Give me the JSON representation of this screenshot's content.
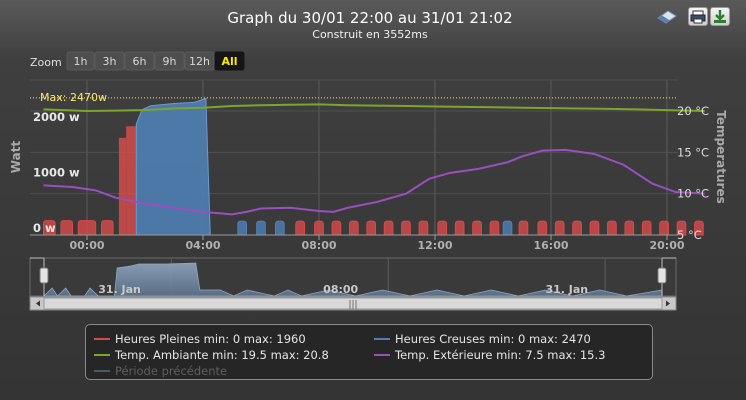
{
  "title": "Graph du 30/01 22:00 au 31/01 21:02",
  "subtitle": "Construit en 3552ms",
  "zoom": {
    "label": "Zoom",
    "buttons": [
      "1h",
      "3h",
      "6h",
      "9h",
      "12h",
      "All"
    ],
    "selected": "All"
  },
  "max_line_label": "Max: 2470w",
  "navigator": {
    "labels": [
      "31. Jan",
      "08:00",
      "31. Jan"
    ],
    "scrollbar_grip": "|||"
  },
  "legend": [
    {
      "text": "Heures Pleines min: 0 max: 1960",
      "color": "#d54b4b",
      "enabled": true
    },
    {
      "text": "Heures Creuses min: 0 max: 2470",
      "color": "#4f7fb5",
      "enabled": true
    },
    {
      "text": "Temp. Ambiante min: 19.5 max: 20.8",
      "color": "#7ca529",
      "enabled": true
    },
    {
      "text": "Temp. Extérieure min: 7.5 max: 15.3",
      "color": "#9b4fbf",
      "enabled": true
    },
    {
      "text": "Période précédente",
      "color": "#4a5a6a",
      "enabled": false
    }
  ],
  "chart_data": {
    "type": "area",
    "x_unit": "hours",
    "x_range": [
      "30/01 22:00",
      "31/01 21:02"
    ],
    "x_ticks": [
      "00:00",
      "04:00",
      "08:00",
      "12:00",
      "16:00",
      "20:00"
    ],
    "y_left": {
      "label": "Watt",
      "ticks": [
        "0 w",
        "1000 w",
        "2000 w"
      ],
      "range": [
        0,
        2470
      ]
    },
    "y_right": {
      "label": "Temperatures",
      "ticks": [
        "5 °C",
        "10 °C",
        "15 °C",
        "20 °C"
      ],
      "range": [
        5,
        20
      ]
    },
    "max_line": 2470,
    "series": [
      {
        "name": "Heures Pleines",
        "axis": "left",
        "color": "#d54b4b",
        "kind": "pulses",
        "segments": [
          [
            -1.5,
            -1.1,
            260
          ],
          [
            -0.9,
            -0.5,
            260
          ],
          [
            -0.3,
            0.3,
            260
          ],
          [
            0.5,
            0.9,
            260
          ],
          [
            1.1,
            1.35,
            1750
          ],
          [
            1.35,
            1.7,
            1960
          ],
          [
            7.2,
            7.5,
            250
          ],
          [
            7.85,
            8.15,
            250
          ],
          [
            8.45,
            8.75,
            250
          ],
          [
            9.05,
            9.35,
            250
          ],
          [
            9.65,
            9.95,
            250
          ],
          [
            10.25,
            10.55,
            250
          ],
          [
            10.85,
            11.15,
            250
          ],
          [
            11.45,
            11.75,
            250
          ],
          [
            12.1,
            12.4,
            250
          ],
          [
            12.7,
            13.0,
            250
          ],
          [
            13.3,
            13.6,
            250
          ],
          [
            13.9,
            14.2,
            250
          ],
          [
            14.9,
            15.2,
            250
          ],
          [
            15.55,
            15.85,
            250
          ],
          [
            16.15,
            16.45,
            250
          ],
          [
            16.75,
            17.05,
            250
          ],
          [
            17.35,
            17.65,
            250
          ],
          [
            17.95,
            18.25,
            250
          ],
          [
            18.55,
            18.85,
            250
          ],
          [
            19.15,
            19.45,
            250
          ],
          [
            19.75,
            20.05,
            250
          ],
          [
            20.35,
            20.65,
            250
          ],
          [
            20.95,
            21.25,
            250
          ]
        ]
      },
      {
        "name": "Heures Creuses",
        "axis": "left",
        "color": "#4f7fb5",
        "kind": "block",
        "points": [
          [
            1.7,
            0
          ],
          [
            1.7,
            2000
          ],
          [
            1.9,
            2260
          ],
          [
            2.2,
            2330
          ],
          [
            3.0,
            2370
          ],
          [
            3.7,
            2390
          ],
          [
            4.1,
            2460
          ],
          [
            4.25,
            0
          ]
        ],
        "pulses": [
          [
            5.2,
            5.5,
            250
          ],
          [
            5.85,
            6.15,
            250
          ],
          [
            6.5,
            6.8,
            250
          ],
          [
            14.35,
            14.65,
            250
          ]
        ]
      },
      {
        "name": "Temp. Ambiante",
        "axis": "right",
        "color": "#7ca529",
        "kind": "line",
        "points": [
          [
            -1.5,
            20.2
          ],
          [
            0,
            20.0
          ],
          [
            1,
            20.05
          ],
          [
            2,
            20.1
          ],
          [
            3,
            20.3
          ],
          [
            4,
            20.4
          ],
          [
            5,
            20.6
          ],
          [
            6,
            20.7
          ],
          [
            7,
            20.75
          ],
          [
            8,
            20.8
          ],
          [
            9,
            20.7
          ],
          [
            10,
            20.65
          ],
          [
            11,
            20.6
          ],
          [
            12,
            20.55
          ],
          [
            13,
            20.5
          ],
          [
            14,
            20.45
          ],
          [
            15,
            20.4
          ],
          [
            16,
            20.35
          ],
          [
            17,
            20.3
          ],
          [
            18,
            20.25
          ],
          [
            19,
            20.2
          ],
          [
            20,
            20.1
          ],
          [
            21.3,
            20.0
          ]
        ]
      },
      {
        "name": "Temp. Extérieure",
        "axis": "right",
        "color": "#9b4fbf",
        "kind": "line",
        "points": [
          [
            -1.5,
            11.0
          ],
          [
            -0.5,
            10.8
          ],
          [
            0.3,
            10.4
          ],
          [
            1,
            9.5
          ],
          [
            2,
            8.8
          ],
          [
            3,
            8.3
          ],
          [
            4,
            7.8
          ],
          [
            5,
            7.5
          ],
          [
            5.5,
            7.8
          ],
          [
            6,
            8.2
          ],
          [
            7,
            8.3
          ],
          [
            8,
            7.9
          ],
          [
            8.5,
            7.8
          ],
          [
            9,
            8.3
          ],
          [
            10,
            9.0
          ],
          [
            11,
            10.0
          ],
          [
            11.8,
            11.8
          ],
          [
            12.5,
            12.5
          ],
          [
            13.5,
            13.0
          ],
          [
            14.5,
            13.8
          ],
          [
            15,
            14.5
          ],
          [
            15.7,
            15.2
          ],
          [
            16.5,
            15.3
          ],
          [
            17.5,
            14.8
          ],
          [
            18.5,
            13.5
          ],
          [
            19.5,
            11.2
          ],
          [
            20.3,
            10.2
          ],
          [
            21.3,
            10.0
          ]
        ]
      }
    ]
  }
}
